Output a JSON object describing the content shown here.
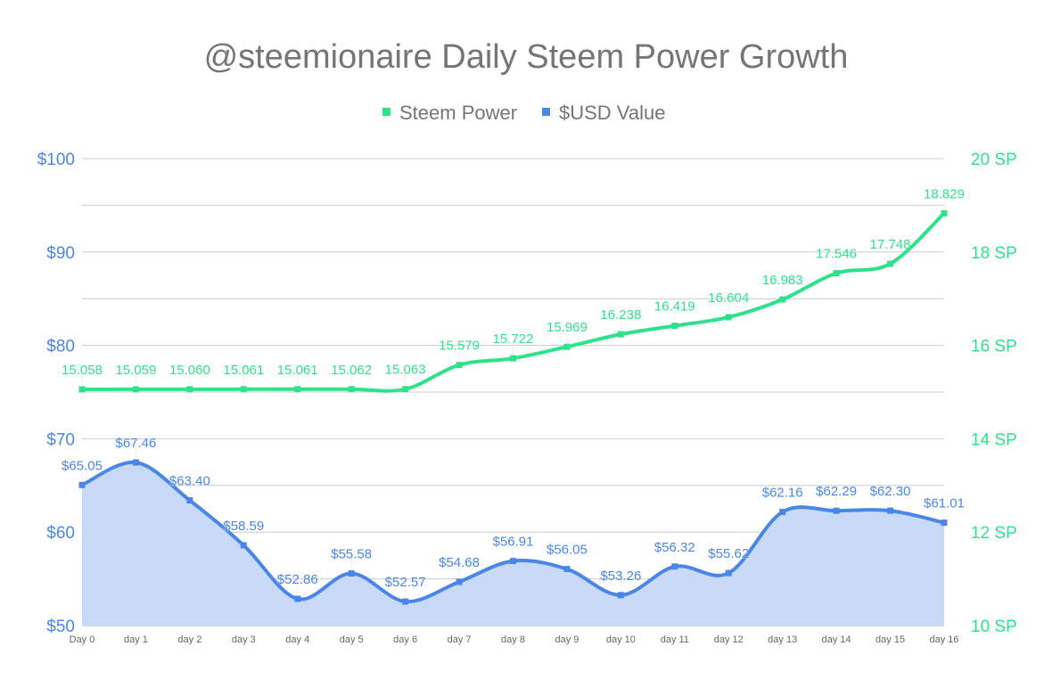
{
  "chart_data": {
    "type": "line",
    "title": "@steemionaire Daily Steem Power Growth",
    "legend_position": "top",
    "grid": true,
    "categories": [
      "Day 0",
      "day 1",
      "day 2",
      "day 3",
      "day 4",
      "day 5",
      "day 6",
      "day 7",
      "day 8",
      "day 9",
      "day 10",
      "day 11",
      "day 12",
      "day 13",
      "day 14",
      "day 15",
      "day 16"
    ],
    "left_axis": {
      "range": [
        50,
        100
      ],
      "ticks": [
        "$50",
        "$60",
        "$70",
        "$80",
        "$90",
        "$100"
      ],
      "tick_values": [
        50,
        60,
        70,
        80,
        90,
        100
      ]
    },
    "right_axis": {
      "range": [
        10,
        20
      ],
      "ticks": [
        "10 SP",
        "12 SP",
        "14 SP",
        "16 SP",
        "18 SP",
        "20 SP"
      ],
      "tick_values": [
        10,
        12,
        14,
        16,
        18,
        20
      ]
    },
    "series": [
      {
        "name": "Steem Power",
        "axis": "right",
        "color": "#2ee28c",
        "values": [
          15.058,
          15.059,
          15.06,
          15.061,
          15.061,
          15.062,
          15.063,
          15.579,
          15.722,
          15.969,
          16.238,
          16.419,
          16.604,
          16.983,
          17.546,
          17.748,
          18.829
        ],
        "labels": [
          "15.058",
          "15.059",
          "15.060",
          "15.061",
          "15.061",
          "15.062",
          "15.063",
          "15.579",
          "15.722",
          "15.969",
          "16.238",
          "16.419",
          "16.604",
          "16.983",
          "17.546",
          "17.748",
          "18.829"
        ]
      },
      {
        "name": "$USD Value",
        "axis": "left",
        "color": "#4a86e8",
        "fill": "#c9daf8",
        "values": [
          65.05,
          67.46,
          63.4,
          58.59,
          52.86,
          55.58,
          52.57,
          54.68,
          56.91,
          56.05,
          53.26,
          56.32,
          55.62,
          62.16,
          62.29,
          62.3,
          61.01
        ],
        "labels": [
          "$65.05",
          "$67.46",
          "$63.40",
          "$58.59",
          "$52.86",
          "$55.58",
          "$52.57",
          "$54.68",
          "$56.91",
          "$56.05",
          "$53.26",
          "$56.32",
          "$55.62",
          "$62.16",
          "$62.29",
          "$62.30",
          "$61.01"
        ]
      }
    ]
  }
}
